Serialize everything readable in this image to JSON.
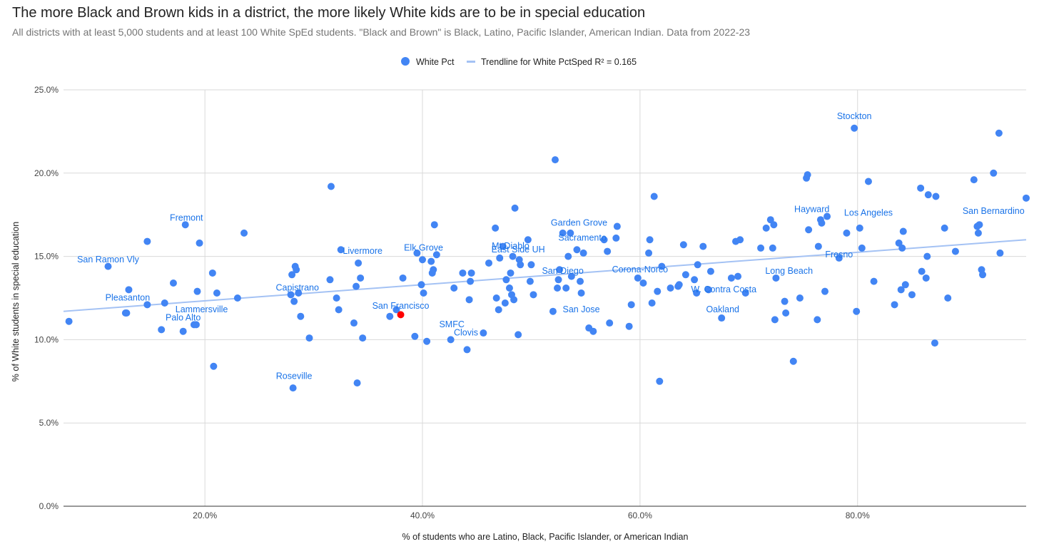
{
  "chart_data": {
    "type": "scatter",
    "title": "The more Black and Brown kids in a district, the more likely White kids are to be in special education",
    "subtitle": "All districts with at least 5,000 students and at least 100 White SpEd students. \"Black and Brown\" is Black, Latino, Pacific Islander, American Indian. Data from 2022-23",
    "xlabel": "% of students who are Latino, Black, Pacific Islander, or American Indian",
    "ylabel": "% of White students in special education",
    "xlim": [
      0.07,
      0.955
    ],
    "ylim": [
      0,
      0.25
    ],
    "x_ticks": [
      0.2,
      0.4,
      0.6,
      0.8
    ],
    "x_tick_labels": [
      "20.0%",
      "40.0%",
      "60.0%",
      "80.0%"
    ],
    "y_ticks": [
      0,
      0.05,
      0.1,
      0.15,
      0.2,
      0.25
    ],
    "y_tick_labels": [
      "0.0%",
      "5.0%",
      "10.0%",
      "15.0%",
      "20.0%",
      "25.0%"
    ],
    "grid": true,
    "legend_position": "top",
    "series": [
      {
        "name": "White Pct",
        "color": "#4285f4",
        "points": [
          [
            0.075,
            0.111
          ],
          [
            0.111,
            0.144
          ],
          [
            0.127,
            0.116
          ],
          [
            0.128,
            0.116
          ],
          [
            0.13,
            0.13
          ],
          [
            0.147,
            0.159
          ],
          [
            0.147,
            0.121
          ],
          [
            0.16,
            0.106
          ],
          [
            0.163,
            0.122
          ],
          [
            0.171,
            0.134
          ],
          [
            0.18,
            0.105
          ],
          [
            0.182,
            0.169
          ],
          [
            0.19,
            0.109
          ],
          [
            0.192,
            0.109
          ],
          [
            0.193,
            0.129
          ],
          [
            0.195,
            0.158
          ],
          [
            0.207,
            0.14
          ],
          [
            0.208,
            0.084
          ],
          [
            0.211,
            0.128
          ],
          [
            0.23,
            0.125
          ],
          [
            0.236,
            0.164
          ],
          [
            0.279,
            0.127
          ],
          [
            0.28,
            0.139
          ],
          [
            0.281,
            0.071
          ],
          [
            0.282,
            0.123
          ],
          [
            0.283,
            0.144
          ],
          [
            0.284,
            0.142
          ],
          [
            0.286,
            0.128
          ],
          [
            0.288,
            0.114
          ],
          [
            0.296,
            0.101
          ],
          [
            0.315,
            0.136
          ],
          [
            0.316,
            0.192
          ],
          [
            0.321,
            0.125
          ],
          [
            0.323,
            0.118
          ],
          [
            0.325,
            0.154
          ],
          [
            0.337,
            0.11
          ],
          [
            0.339,
            0.132
          ],
          [
            0.34,
            0.074
          ],
          [
            0.341,
            0.146
          ],
          [
            0.343,
            0.137
          ],
          [
            0.345,
            0.101
          ],
          [
            0.37,
            0.114
          ],
          [
            0.376,
            0.118
          ],
          [
            0.382,
            0.137
          ],
          [
            0.393,
            0.102
          ],
          [
            0.395,
            0.152
          ],
          [
            0.399,
            0.133
          ],
          [
            0.4,
            0.148
          ],
          [
            0.401,
            0.128
          ],
          [
            0.404,
            0.099
          ],
          [
            0.408,
            0.147
          ],
          [
            0.409,
            0.14
          ],
          [
            0.41,
            0.142
          ],
          [
            0.411,
            0.169
          ],
          [
            0.413,
            0.151
          ],
          [
            0.426,
            0.1
          ],
          [
            0.429,
            0.131
          ],
          [
            0.437,
            0.14
          ],
          [
            0.441,
            0.094
          ],
          [
            0.443,
            0.124
          ],
          [
            0.444,
            0.135
          ],
          [
            0.445,
            0.14
          ],
          [
            0.456,
            0.104
          ],
          [
            0.461,
            0.146
          ],
          [
            0.467,
            0.167
          ],
          [
            0.468,
            0.125
          ],
          [
            0.47,
            0.118
          ],
          [
            0.471,
            0.149
          ],
          [
            0.474,
            0.156
          ],
          [
            0.476,
            0.122
          ],
          [
            0.477,
            0.136
          ],
          [
            0.48,
            0.131
          ],
          [
            0.481,
            0.14
          ],
          [
            0.482,
            0.127
          ],
          [
            0.483,
            0.15
          ],
          [
            0.484,
            0.124
          ],
          [
            0.485,
            0.179
          ],
          [
            0.488,
            0.103
          ],
          [
            0.489,
            0.148
          ],
          [
            0.49,
            0.145
          ],
          [
            0.497,
            0.16
          ],
          [
            0.499,
            0.135
          ],
          [
            0.5,
            0.145
          ],
          [
            0.502,
            0.127
          ],
          [
            0.52,
            0.117
          ],
          [
            0.522,
            0.208
          ],
          [
            0.524,
            0.131
          ],
          [
            0.525,
            0.136
          ],
          [
            0.526,
            0.142
          ],
          [
            0.529,
            0.164
          ],
          [
            0.532,
            0.131
          ],
          [
            0.534,
            0.15
          ],
          [
            0.536,
            0.164
          ],
          [
            0.537,
            0.138
          ],
          [
            0.542,
            0.154
          ],
          [
            0.545,
            0.135
          ],
          [
            0.546,
            0.128
          ],
          [
            0.548,
            0.152
          ],
          [
            0.553,
            0.107
          ],
          [
            0.557,
            0.105
          ],
          [
            0.567,
            0.16
          ],
          [
            0.57,
            0.153
          ],
          [
            0.572,
            0.11
          ],
          [
            0.578,
            0.161
          ],
          [
            0.579,
            0.168
          ],
          [
            0.59,
            0.108
          ],
          [
            0.592,
            0.121
          ],
          [
            0.598,
            0.137
          ],
          [
            0.603,
            0.134
          ],
          [
            0.608,
            0.152
          ],
          [
            0.609,
            0.16
          ],
          [
            0.611,
            0.122
          ],
          [
            0.613,
            0.186
          ],
          [
            0.616,
            0.129
          ],
          [
            0.618,
            0.075
          ],
          [
            0.62,
            0.144
          ],
          [
            0.628,
            0.131
          ],
          [
            0.635,
            0.132
          ],
          [
            0.636,
            0.133
          ],
          [
            0.64,
            0.157
          ],
          [
            0.642,
            0.139
          ],
          [
            0.65,
            0.136
          ],
          [
            0.652,
            0.128
          ],
          [
            0.653,
            0.145
          ],
          [
            0.658,
            0.156
          ],
          [
            0.663,
            0.13
          ],
          [
            0.665,
            0.141
          ],
          [
            0.675,
            0.113
          ],
          [
            0.684,
            0.137
          ],
          [
            0.688,
            0.159
          ],
          [
            0.69,
            0.138
          ],
          [
            0.692,
            0.16
          ],
          [
            0.697,
            0.128
          ],
          [
            0.711,
            0.155
          ],
          [
            0.716,
            0.167
          ],
          [
            0.72,
            0.172
          ],
          [
            0.722,
            0.155
          ],
          [
            0.723,
            0.169
          ],
          [
            0.724,
            0.112
          ],
          [
            0.725,
            0.137
          ],
          [
            0.733,
            0.123
          ],
          [
            0.734,
            0.116
          ],
          [
            0.741,
            0.087
          ],
          [
            0.747,
            0.125
          ],
          [
            0.753,
            0.197
          ],
          [
            0.754,
            0.199
          ],
          [
            0.755,
            0.166
          ],
          [
            0.763,
            0.112
          ],
          [
            0.764,
            0.156
          ],
          [
            0.766,
            0.172
          ],
          [
            0.767,
            0.17
          ],
          [
            0.77,
            0.129
          ],
          [
            0.772,
            0.174
          ],
          [
            0.783,
            0.149
          ],
          [
            0.79,
            0.164
          ],
          [
            0.797,
            0.227
          ],
          [
            0.799,
            0.117
          ],
          [
            0.802,
            0.167
          ],
          [
            0.804,
            0.155
          ],
          [
            0.81,
            0.195
          ],
          [
            0.815,
            0.135
          ],
          [
            0.834,
            0.121
          ],
          [
            0.838,
            0.158
          ],
          [
            0.84,
            0.13
          ],
          [
            0.841,
            0.155
          ],
          [
            0.842,
            0.165
          ],
          [
            0.844,
            0.133
          ],
          [
            0.85,
            0.127
          ],
          [
            0.858,
            0.191
          ],
          [
            0.859,
            0.141
          ],
          [
            0.863,
            0.137
          ],
          [
            0.864,
            0.15
          ],
          [
            0.865,
            0.187
          ],
          [
            0.871,
            0.098
          ],
          [
            0.872,
            0.186
          ],
          [
            0.88,
            0.167
          ],
          [
            0.883,
            0.125
          ],
          [
            0.89,
            0.153
          ],
          [
            0.907,
            0.196
          ],
          [
            0.91,
            0.168
          ],
          [
            0.911,
            0.164
          ],
          [
            0.912,
            0.169
          ],
          [
            0.914,
            0.142
          ],
          [
            0.915,
            0.139
          ],
          [
            0.925,
            0.2
          ],
          [
            0.93,
            0.224
          ],
          [
            0.931,
            0.152
          ],
          [
            0.955,
            0.185
          ]
        ]
      },
      {
        "name": "San Francisco",
        "color": "#ff0000",
        "points": [
          [
            0.38,
            0.115
          ]
        ]
      }
    ],
    "trendline": {
      "label": "Trendline for White PctSped R² = 0.165",
      "color": "#a4c2f4",
      "points": [
        [
          0.07,
          0.117
        ],
        [
          0.955,
          0.16
        ]
      ]
    },
    "annotations": [
      {
        "label": "San Ramon Vly",
        "x": 0.111,
        "y": 0.1465
      },
      {
        "label": "Pleasanton",
        "x": 0.129,
        "y": 0.1235
      },
      {
        "label": "Fremont",
        "x": 0.183,
        "y": 0.1715
      },
      {
        "label": "Lammersville",
        "x": 0.197,
        "y": 0.1165
      },
      {
        "label": "Palo Alto",
        "x": 0.18,
        "y": 0.1115
      },
      {
        "label": "Capistrano",
        "x": 0.285,
        "y": 0.1295
      },
      {
        "label": "Roseville",
        "x": 0.282,
        "y": 0.0765
      },
      {
        "label": "Livermore",
        "x": 0.345,
        "y": 0.1515
      },
      {
        "label": "San Francisco",
        "x": 0.38,
        "y": 0.1185
      },
      {
        "label": "Elk Grove",
        "x": 0.401,
        "y": 0.1535
      },
      {
        "label": "SMFC",
        "x": 0.427,
        "y": 0.1075
      },
      {
        "label": "Clovis",
        "x": 0.44,
        "y": 0.1025
      },
      {
        "label": "Mt Diablo",
        "x": 0.481,
        "y": 0.1545
      },
      {
        "label": "East Side UH",
        "x": 0.488,
        "y": 0.1525
      },
      {
        "label": "San Diego",
        "x": 0.529,
        "y": 0.1395
      },
      {
        "label": "Garden Grove",
        "x": 0.544,
        "y": 0.1685
      },
      {
        "label": "Sacramento",
        "x": 0.547,
        "y": 0.1595
      },
      {
        "label": "San Jose",
        "x": 0.546,
        "y": 0.1165
      },
      {
        "label": "Corona-Norco",
        "x": 0.6,
        "y": 0.1405
      },
      {
        "label": "W. Contra Costa",
        "x": 0.677,
        "y": 0.1285
      },
      {
        "label": "Oakland",
        "x": 0.676,
        "y": 0.1165
      },
      {
        "label": "Long Beach",
        "x": 0.737,
        "y": 0.1395
      },
      {
        "label": "Hayward",
        "x": 0.758,
        "y": 0.1765
      },
      {
        "label": "Los Angeles",
        "x": 0.81,
        "y": 0.1745
      },
      {
        "label": "Fresno",
        "x": 0.783,
        "y": 0.1495
      },
      {
        "label": "Stockton",
        "x": 0.797,
        "y": 0.2325
      },
      {
        "label": "San Bernardino",
        "x": 0.925,
        "y": 0.1755
      }
    ]
  }
}
